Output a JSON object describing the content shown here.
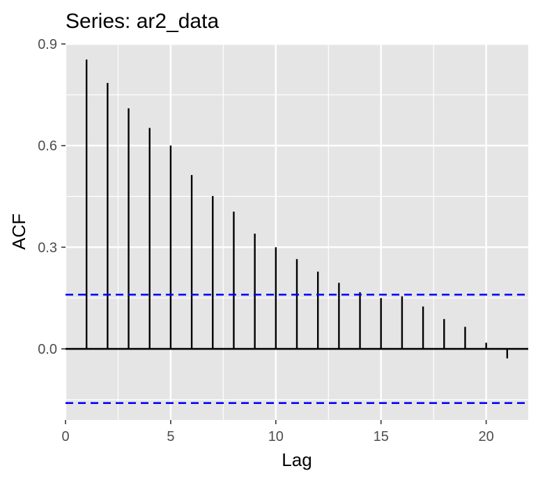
{
  "chart_data": {
    "type": "bar",
    "title": "Series: ar2_data",
    "xlabel": "Lag",
    "ylabel": "ACF",
    "xlim": [
      0,
      22
    ],
    "ylim": [
      -0.21,
      0.9
    ],
    "x_ticks": [
      "0",
      "5",
      "10",
      "15",
      "20"
    ],
    "x_tick_values": [
      0,
      5,
      10,
      15,
      20
    ],
    "y_ticks": [
      "0.0",
      "0.3",
      "0.6",
      "0.9"
    ],
    "y_tick_values": [
      0.0,
      0.3,
      0.6,
      0.9
    ],
    "grid": true,
    "x": [
      1,
      2,
      3,
      4,
      5,
      6,
      7,
      8,
      9,
      10,
      11,
      12,
      13,
      14,
      15,
      16,
      17,
      18,
      19,
      20,
      21
    ],
    "values": [
      0.854,
      0.785,
      0.71,
      0.652,
      0.6,
      0.513,
      0.451,
      0.405,
      0.34,
      0.3,
      0.265,
      0.228,
      0.195,
      0.167,
      0.15,
      0.155,
      0.125,
      0.088,
      0.065,
      0.018,
      -0.028
    ],
    "confidence_bounds": [
      0.16,
      -0.16
    ],
    "colors": {
      "panel": "#e5e5e5",
      "grid": "#ffffff",
      "bars": "#000000",
      "bounds": "#0000ff",
      "tick_text": "#4d4d4d"
    }
  }
}
